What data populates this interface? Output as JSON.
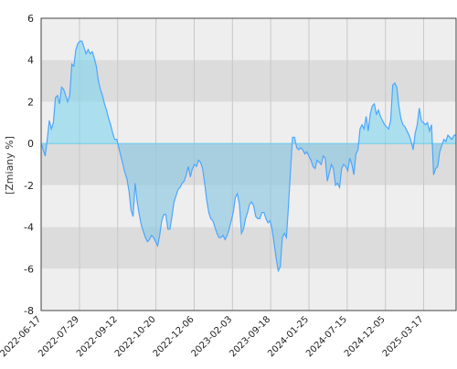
{
  "chart_data": {
    "type": "area",
    "title": "",
    "xlabel": "",
    "ylabel": "[Zmiany %]",
    "ylim": [
      -8,
      6
    ],
    "y_ticks": [
      6,
      4,
      2,
      0,
      -2,
      -4,
      -6,
      -8
    ],
    "x_tick_labels": [
      "2022-06-17",
      "2022-07-29",
      "2022-09-12",
      "2022-10-20",
      "2022-12-06",
      "2023-02-03",
      "2023-09-18",
      "2024-01-25",
      "2024-07-15",
      "2024-12-05",
      "2025-03-17"
    ],
    "grid": true,
    "legend": "none",
    "colors": {
      "line": "#4da6ff",
      "positive_fill": "#7fd6ee",
      "negative_fill": "#8cc7e0",
      "zero_line": "#66ccee",
      "band_light": "#eeeeee",
      "band_dark": "#dcdcdc",
      "vertical_grid": "#c8c8c8"
    },
    "series": [
      {
        "values": [
          0.0,
          -0.3,
          -0.6,
          0.2,
          1.1,
          0.7,
          1.0,
          2.2,
          2.3,
          1.9,
          2.7,
          2.6,
          2.3,
          2.0,
          2.3,
          3.8,
          3.7,
          4.5,
          4.8,
          4.9,
          4.9,
          4.6,
          4.3,
          4.5,
          4.3,
          4.4,
          4.1,
          3.7,
          3.0,
          2.6,
          2.3,
          1.9,
          1.6,
          1.2,
          0.9,
          0.5,
          0.2,
          0.2,
          -0.2,
          -0.6,
          -1.0,
          -1.4,
          -1.7,
          -2.3,
          -3.2,
          -3.5,
          -1.9,
          -2.8,
          -3.4,
          -3.9,
          -4.2,
          -4.5,
          -4.7,
          -4.6,
          -4.4,
          -4.5,
          -4.7,
          -4.9,
          -4.4,
          -3.7,
          -3.4,
          -3.4,
          -4.1,
          -4.1,
          -3.5,
          -2.8,
          -2.5,
          -2.2,
          -2.1,
          -1.9,
          -1.8,
          -1.5,
          -1.1,
          -1.6,
          -1.2,
          -1.0,
          -1.1,
          -0.8,
          -0.9,
          -1.2,
          -1.9,
          -2.7,
          -3.3,
          -3.6,
          -3.7,
          -4.0,
          -4.3,
          -4.5,
          -4.5,
          -4.4,
          -4.6,
          -4.4,
          -4.1,
          -3.7,
          -3.3,
          -2.6,
          -2.4,
          -2.9,
          -4.3,
          -4.1,
          -3.6,
          -3.3,
          -2.9,
          -2.8,
          -3.0,
          -3.5,
          -3.6,
          -3.6,
          -3.3,
          -3.3,
          -3.6,
          -3.8,
          -3.7,
          -4.1,
          -4.8,
          -5.5,
          -6.1,
          -5.9,
          -4.5,
          -4.3,
          -4.5,
          -3.0,
          -1.3,
          0.3,
          0.3,
          -0.2,
          -0.3,
          -0.2,
          -0.3,
          -0.5,
          -0.4,
          -0.6,
          -0.8,
          -1.1,
          -1.2,
          -0.8,
          -0.9,
          -1.0,
          -0.6,
          -0.7,
          -1.8,
          -1.4,
          -1.0,
          -1.2,
          -2.0,
          -1.9,
          -2.1,
          -1.2,
          -1.0,
          -1.1,
          -1.3,
          -0.7,
          -1.0,
          -1.5,
          -0.5,
          -0.3,
          0.7,
          0.9,
          0.7,
          1.3,
          0.6,
          1.4,
          1.8,
          1.9,
          1.4,
          1.6,
          1.3,
          1.1,
          0.9,
          0.8,
          0.7,
          1.1,
          2.8,
          2.9,
          2.7,
          1.8,
          1.2,
          0.9,
          0.8,
          0.6,
          0.4,
          0.1,
          -0.3,
          0.5,
          0.9,
          1.7,
          1.1,
          1.0,
          0.9,
          1.0,
          0.6,
          0.9,
          -1.5,
          -1.2,
          -1.1,
          -0.4,
          -0.1,
          0.2,
          0.1,
          0.4,
          0.3,
          0.2,
          0.4,
          0.4
        ]
      }
    ]
  }
}
